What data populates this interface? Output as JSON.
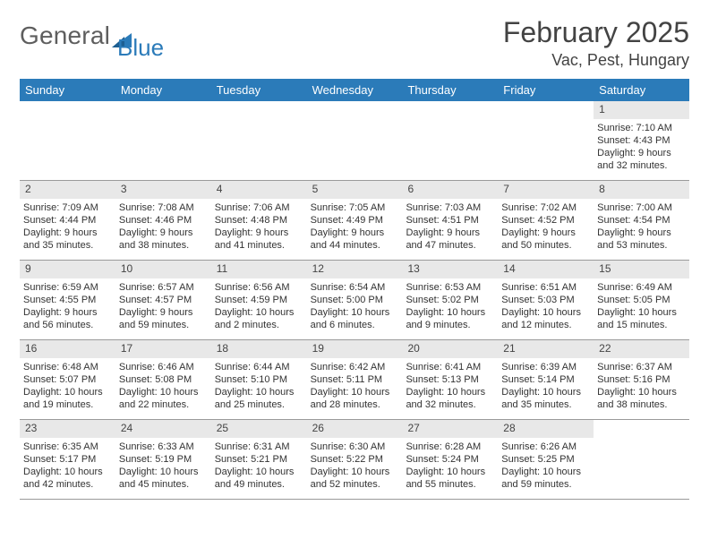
{
  "brand": {
    "word1": "General",
    "word2": "Blue"
  },
  "colors": {
    "header_bg": "#2b7bb9",
    "daynum_bg": "#e8e8e8",
    "divider": "#9a9a9a"
  },
  "title": "February 2025",
  "location": "Vac, Pest, Hungary",
  "weekdays": [
    "Sunday",
    "Monday",
    "Tuesday",
    "Wednesday",
    "Thursday",
    "Friday",
    "Saturday"
  ],
  "rows": [
    [
      {
        "blank": true
      },
      {
        "blank": true
      },
      {
        "blank": true
      },
      {
        "blank": true
      },
      {
        "blank": true
      },
      {
        "blank": true
      },
      {
        "day": "1",
        "sunrise": "Sunrise: 7:10 AM",
        "sunset": "Sunset: 4:43 PM",
        "dl1": "Daylight: 9 hours",
        "dl2": "and 32 minutes."
      }
    ],
    [
      {
        "day": "2",
        "sunrise": "Sunrise: 7:09 AM",
        "sunset": "Sunset: 4:44 PM",
        "dl1": "Daylight: 9 hours",
        "dl2": "and 35 minutes."
      },
      {
        "day": "3",
        "sunrise": "Sunrise: 7:08 AM",
        "sunset": "Sunset: 4:46 PM",
        "dl1": "Daylight: 9 hours",
        "dl2": "and 38 minutes."
      },
      {
        "day": "4",
        "sunrise": "Sunrise: 7:06 AM",
        "sunset": "Sunset: 4:48 PM",
        "dl1": "Daylight: 9 hours",
        "dl2": "and 41 minutes."
      },
      {
        "day": "5",
        "sunrise": "Sunrise: 7:05 AM",
        "sunset": "Sunset: 4:49 PM",
        "dl1": "Daylight: 9 hours",
        "dl2": "and 44 minutes."
      },
      {
        "day": "6",
        "sunrise": "Sunrise: 7:03 AM",
        "sunset": "Sunset: 4:51 PM",
        "dl1": "Daylight: 9 hours",
        "dl2": "and 47 minutes."
      },
      {
        "day": "7",
        "sunrise": "Sunrise: 7:02 AM",
        "sunset": "Sunset: 4:52 PM",
        "dl1": "Daylight: 9 hours",
        "dl2": "and 50 minutes."
      },
      {
        "day": "8",
        "sunrise": "Sunrise: 7:00 AM",
        "sunset": "Sunset: 4:54 PM",
        "dl1": "Daylight: 9 hours",
        "dl2": "and 53 minutes."
      }
    ],
    [
      {
        "day": "9",
        "sunrise": "Sunrise: 6:59 AM",
        "sunset": "Sunset: 4:55 PM",
        "dl1": "Daylight: 9 hours",
        "dl2": "and 56 minutes."
      },
      {
        "day": "10",
        "sunrise": "Sunrise: 6:57 AM",
        "sunset": "Sunset: 4:57 PM",
        "dl1": "Daylight: 9 hours",
        "dl2": "and 59 minutes."
      },
      {
        "day": "11",
        "sunrise": "Sunrise: 6:56 AM",
        "sunset": "Sunset: 4:59 PM",
        "dl1": "Daylight: 10 hours",
        "dl2": "and 2 minutes."
      },
      {
        "day": "12",
        "sunrise": "Sunrise: 6:54 AM",
        "sunset": "Sunset: 5:00 PM",
        "dl1": "Daylight: 10 hours",
        "dl2": "and 6 minutes."
      },
      {
        "day": "13",
        "sunrise": "Sunrise: 6:53 AM",
        "sunset": "Sunset: 5:02 PM",
        "dl1": "Daylight: 10 hours",
        "dl2": "and 9 minutes."
      },
      {
        "day": "14",
        "sunrise": "Sunrise: 6:51 AM",
        "sunset": "Sunset: 5:03 PM",
        "dl1": "Daylight: 10 hours",
        "dl2": "and 12 minutes."
      },
      {
        "day": "15",
        "sunrise": "Sunrise: 6:49 AM",
        "sunset": "Sunset: 5:05 PM",
        "dl1": "Daylight: 10 hours",
        "dl2": "and 15 minutes."
      }
    ],
    [
      {
        "day": "16",
        "sunrise": "Sunrise: 6:48 AM",
        "sunset": "Sunset: 5:07 PM",
        "dl1": "Daylight: 10 hours",
        "dl2": "and 19 minutes."
      },
      {
        "day": "17",
        "sunrise": "Sunrise: 6:46 AM",
        "sunset": "Sunset: 5:08 PM",
        "dl1": "Daylight: 10 hours",
        "dl2": "and 22 minutes."
      },
      {
        "day": "18",
        "sunrise": "Sunrise: 6:44 AM",
        "sunset": "Sunset: 5:10 PM",
        "dl1": "Daylight: 10 hours",
        "dl2": "and 25 minutes."
      },
      {
        "day": "19",
        "sunrise": "Sunrise: 6:42 AM",
        "sunset": "Sunset: 5:11 PM",
        "dl1": "Daylight: 10 hours",
        "dl2": "and 28 minutes."
      },
      {
        "day": "20",
        "sunrise": "Sunrise: 6:41 AM",
        "sunset": "Sunset: 5:13 PM",
        "dl1": "Daylight: 10 hours",
        "dl2": "and 32 minutes."
      },
      {
        "day": "21",
        "sunrise": "Sunrise: 6:39 AM",
        "sunset": "Sunset: 5:14 PM",
        "dl1": "Daylight: 10 hours",
        "dl2": "and 35 minutes."
      },
      {
        "day": "22",
        "sunrise": "Sunrise: 6:37 AM",
        "sunset": "Sunset: 5:16 PM",
        "dl1": "Daylight: 10 hours",
        "dl2": "and 38 minutes."
      }
    ],
    [
      {
        "day": "23",
        "sunrise": "Sunrise: 6:35 AM",
        "sunset": "Sunset: 5:17 PM",
        "dl1": "Daylight: 10 hours",
        "dl2": "and 42 minutes."
      },
      {
        "day": "24",
        "sunrise": "Sunrise: 6:33 AM",
        "sunset": "Sunset: 5:19 PM",
        "dl1": "Daylight: 10 hours",
        "dl2": "and 45 minutes."
      },
      {
        "day": "25",
        "sunrise": "Sunrise: 6:31 AM",
        "sunset": "Sunset: 5:21 PM",
        "dl1": "Daylight: 10 hours",
        "dl2": "and 49 minutes."
      },
      {
        "day": "26",
        "sunrise": "Sunrise: 6:30 AM",
        "sunset": "Sunset: 5:22 PM",
        "dl1": "Daylight: 10 hours",
        "dl2": "and 52 minutes."
      },
      {
        "day": "27",
        "sunrise": "Sunrise: 6:28 AM",
        "sunset": "Sunset: 5:24 PM",
        "dl1": "Daylight: 10 hours",
        "dl2": "and 55 minutes."
      },
      {
        "day": "28",
        "sunrise": "Sunrise: 6:26 AM",
        "sunset": "Sunset: 5:25 PM",
        "dl1": "Daylight: 10 hours",
        "dl2": "and 59 minutes."
      },
      {
        "blank": true
      }
    ]
  ]
}
